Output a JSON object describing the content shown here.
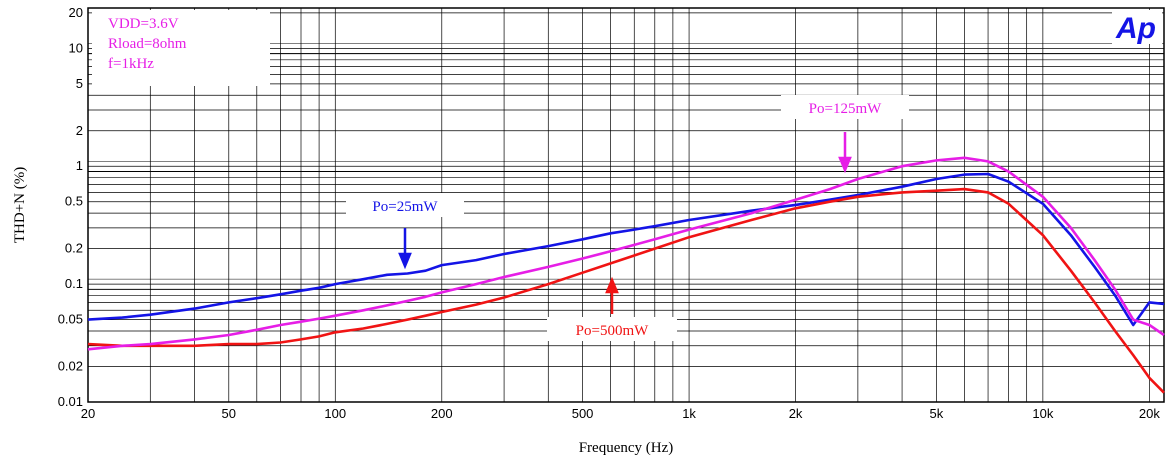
{
  "chart_data": {
    "type": "line",
    "xlabel": "Frequency (Hz)",
    "ylabel": "THD+N (%)",
    "x_scale": "log",
    "y_scale": "log",
    "xlim": [
      20,
      22000
    ],
    "ylim": [
      0.01,
      22
    ],
    "grid": true,
    "x_ticks": [
      20,
      50,
      100,
      200,
      500,
      1000,
      2000,
      5000,
      10000,
      20000
    ],
    "x_tick_labels": [
      "20",
      "50",
      "100",
      "200",
      "500",
      "1k",
      "2k",
      "5k",
      "10k",
      "20k"
    ],
    "y_ticks": [
      0.01,
      0.02,
      0.05,
      0.1,
      0.2,
      0.5,
      1,
      2,
      5,
      10,
      20
    ],
    "y_tick_labels": [
      "0.01",
      "0.02",
      "0.05",
      "0.1",
      "0.2",
      "0.5",
      "1",
      "2",
      "5",
      "10",
      "20"
    ],
    "conditions": [
      "VDD=3.6V",
      "Rload=8ohm",
      "f=1kHz"
    ],
    "logo": "Ap",
    "series": [
      {
        "name": "Po=25mW",
        "color": "#1414e6",
        "x": [
          20,
          25,
          30,
          40,
          50,
          60,
          70,
          80,
          90,
          100,
          120,
          140,
          160,
          180,
          200,
          250,
          300,
          400,
          500,
          600,
          700,
          800,
          1000,
          1500,
          2000,
          2500,
          3000,
          4000,
          5000,
          6000,
          7000,
          8000,
          10000,
          12000,
          14000,
          16000,
          18000,
          20000,
          22000
        ],
        "y": [
          0.05,
          0.052,
          0.055,
          0.062,
          0.07,
          0.076,
          0.082,
          0.088,
          0.093,
          0.1,
          0.11,
          0.12,
          0.123,
          0.13,
          0.145,
          0.16,
          0.18,
          0.21,
          0.24,
          0.27,
          0.29,
          0.31,
          0.35,
          0.42,
          0.47,
          0.52,
          0.57,
          0.67,
          0.78,
          0.85,
          0.86,
          0.74,
          0.48,
          0.26,
          0.14,
          0.08,
          0.045,
          0.07,
          0.068
        ]
      },
      {
        "name": "Po=125mW",
        "color": "#e61ee6",
        "x": [
          20,
          25,
          30,
          40,
          50,
          60,
          70,
          80,
          90,
          100,
          120,
          140,
          160,
          180,
          200,
          250,
          300,
          400,
          500,
          600,
          700,
          800,
          1000,
          1500,
          2000,
          2500,
          3000,
          4000,
          5000,
          6000,
          7000,
          8000,
          10000,
          12000,
          14000,
          16000,
          18000,
          20000,
          22000
        ],
        "y": [
          0.028,
          0.03,
          0.031,
          0.034,
          0.037,
          0.041,
          0.045,
          0.048,
          0.051,
          0.054,
          0.06,
          0.066,
          0.072,
          0.078,
          0.085,
          0.1,
          0.115,
          0.14,
          0.165,
          0.19,
          0.215,
          0.24,
          0.29,
          0.4,
          0.52,
          0.64,
          0.78,
          1.0,
          1.12,
          1.18,
          1.1,
          0.9,
          0.55,
          0.3,
          0.16,
          0.09,
          0.05,
          0.045,
          0.037
        ]
      },
      {
        "name": "Po=500mW",
        "color": "#f01414",
        "x": [
          20,
          25,
          30,
          40,
          50,
          60,
          70,
          80,
          90,
          100,
          120,
          140,
          160,
          180,
          200,
          250,
          300,
          400,
          500,
          600,
          700,
          800,
          1000,
          1500,
          2000,
          2500,
          3000,
          4000,
          5000,
          6000,
          7000,
          8000,
          10000,
          12000,
          14000,
          16000,
          18000,
          20000,
          22000
        ],
        "y": [
          0.031,
          0.03,
          0.03,
          0.03,
          0.031,
          0.031,
          0.032,
          0.034,
          0.036,
          0.039,
          0.042,
          0.046,
          0.05,
          0.054,
          0.058,
          0.067,
          0.077,
          0.1,
          0.125,
          0.15,
          0.175,
          0.2,
          0.25,
          0.35,
          0.44,
          0.5,
          0.55,
          0.6,
          0.62,
          0.64,
          0.6,
          0.48,
          0.26,
          0.13,
          0.07,
          0.04,
          0.025,
          0.016,
          0.012
        ]
      }
    ],
    "callouts": [
      {
        "text": "Po=25mW",
        "color": "#1414e6"
      },
      {
        "text": "Po=125mW",
        "color": "#e61ee6"
      },
      {
        "text": "Po=500mW",
        "color": "#f01414"
      }
    ]
  }
}
